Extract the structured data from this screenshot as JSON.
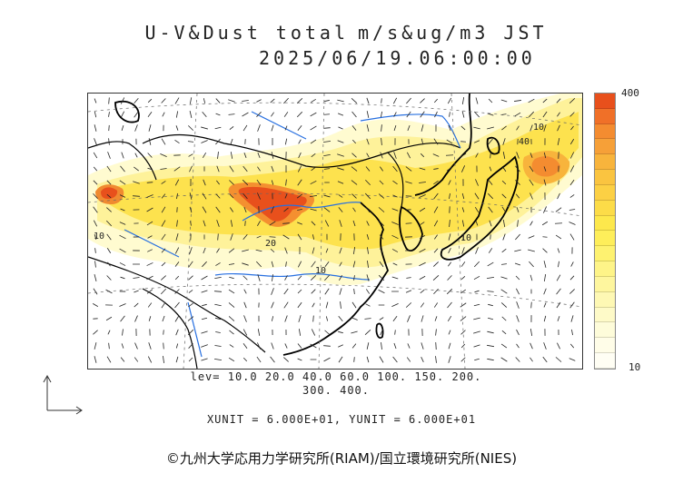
{
  "title": {
    "variable": "U-V&Dust total",
    "units": "m/s&ug/m3 JST",
    "datetime": "2025/06/19.06:00:00"
  },
  "colorbar": {
    "max_label": "400",
    "min_label": "10",
    "colors": [
      "#e8501c",
      "#f07028",
      "#f48c30",
      "#f6a038",
      "#f8b43c",
      "#fac440",
      "#fcd044",
      "#fcdc48",
      "#fde84c",
      "#feee5a",
      "#fef270",
      "#fef488",
      "#fef69e",
      "#fef8b4",
      "#fefac8",
      "#fefcda",
      "#fffde8",
      "#fffef4"
    ]
  },
  "levels": "lev= 10.0 20.0 40.0 60.0 100. 150. 200.\n300. 400.",
  "units_line": "XUNIT = 6.000E+01, YUNIT = 6.000E+01",
  "credit": "©九州大学応用力学研究所(RIAM)/国立環境研究所(NIES)",
  "contour_labels": [
    "20",
    "10",
    "10",
    "10",
    "10",
    "40"
  ]
}
